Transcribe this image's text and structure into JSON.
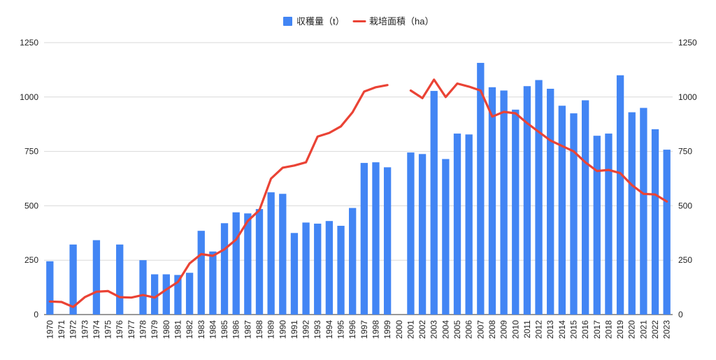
{
  "chart_data": {
    "type": "bar",
    "title": "",
    "xlabel": "",
    "ylabel": "",
    "ylim": [
      0,
      1250
    ],
    "y2lim": [
      0,
      1250
    ],
    "yticks": [
      "0",
      "250",
      "500",
      "750",
      "1000",
      "1250"
    ],
    "grid": true,
    "legend_position": "top-center",
    "categories": [
      "1970",
      "1971",
      "1972",
      "1973",
      "1974",
      "1975",
      "1976",
      "1977",
      "1978",
      "1979",
      "1980",
      "1981",
      "1982",
      "1983",
      "1984",
      "1985",
      "1986",
      "1987",
      "1988",
      "1989",
      "1990",
      "1991",
      "1992",
      "1993",
      "1994",
      "1995",
      "1996",
      "1997",
      "1998",
      "1999",
      "2000",
      "2001",
      "2002",
      "2003",
      "2004",
      "2005",
      "2006",
      "2007",
      "2008",
      "2009",
      "2010",
      "2011",
      "2012",
      "2013",
      "2014",
      "2015",
      "2016",
      "2017",
      "2018",
      "2019",
      "2020",
      "2021",
      "2022",
      "2023"
    ],
    "series": [
      {
        "name": "収穫量（t）",
        "type": "bar",
        "color": "#4285f4",
        "values": [
          245,
          null,
          322,
          null,
          342,
          null,
          322,
          null,
          250,
          185,
          185,
          182,
          192,
          385,
          290,
          420,
          470,
          465,
          485,
          562,
          555,
          375,
          423,
          418,
          430,
          408,
          490,
          697,
          700,
          677,
          null,
          745,
          738,
          1028,
          715,
          832,
          828,
          1157,
          1045,
          1030,
          942,
          1050,
          1078,
          1038,
          960,
          925,
          985,
          822,
          832,
          1100,
          930,
          950,
          852,
          758
        ]
      },
      {
        "name": "栽培面積（ha）",
        "type": "line",
        "color": "#ea4335",
        "values": [
          60,
          58,
          35,
          80,
          105,
          108,
          80,
          78,
          90,
          78,
          115,
          150,
          235,
          278,
          270,
          300,
          345,
          430,
          480,
          625,
          675,
          685,
          700,
          818,
          835,
          865,
          930,
          1025,
          1045,
          1055,
          null,
          1030,
          995,
          1080,
          1000,
          1062,
          1048,
          1030,
          910,
          932,
          925,
          880,
          840,
          800,
          775,
          750,
          700,
          660,
          665,
          650,
          595,
          555,
          552,
          520
        ]
      }
    ]
  }
}
